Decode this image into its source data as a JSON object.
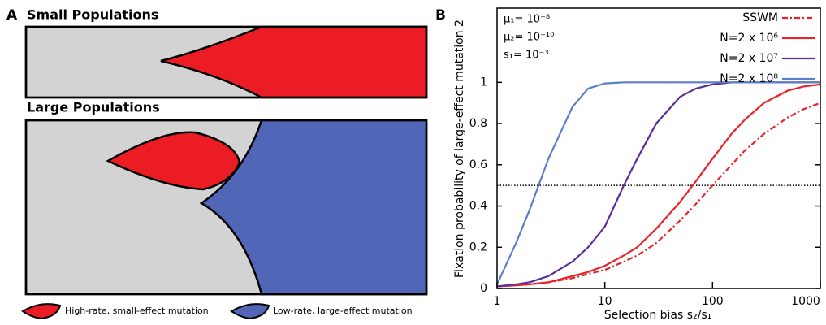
{
  "panel_a": {
    "label": "A",
    "small_title": "Small Populations",
    "large_title": "Large Populations",
    "legend": [
      "High-rate, small-effect mutation",
      "Low-rate, large-effect mutation"
    ]
  },
  "chart_data": {
    "type": "line",
    "panel_label": "B",
    "x_label": "Selection bias s₂/s₁",
    "y_label": "Fixation probability of large-effect mutation 2",
    "annotations": [
      "μ₁= 10⁻⁸",
      "μ₂= 10⁻¹⁰",
      "s₁= 10⁻³"
    ],
    "x": [
      1,
      1.5,
      2,
      3,
      5,
      7,
      10,
      15,
      20,
      30,
      50,
      70,
      100,
      150,
      200,
      300,
      500,
      700,
      1000
    ],
    "series": [
      {
        "name": "SSWM",
        "color": "#e8232a",
        "linestyle": "dashdot",
        "values": [
          0.01,
          0.015,
          0.02,
          0.03,
          0.05,
          0.07,
          0.09,
          0.13,
          0.16,
          0.22,
          0.33,
          0.41,
          0.5,
          0.6,
          0.67,
          0.75,
          0.83,
          0.87,
          0.9
        ]
      },
      {
        "name": "N=2 x 10⁶",
        "color": "#e8232a",
        "linestyle": "solid",
        "values": [
          0.01,
          0.015,
          0.02,
          0.03,
          0.06,
          0.08,
          0.11,
          0.16,
          0.2,
          0.29,
          0.42,
          0.52,
          0.63,
          0.75,
          0.82,
          0.9,
          0.96,
          0.98,
          0.99
        ]
      },
      {
        "name": "N=2 x 10⁷",
        "color": "#5a2d9c",
        "linestyle": "solid",
        "values": [
          0.01,
          0.02,
          0.03,
          0.06,
          0.13,
          0.2,
          0.3,
          0.5,
          0.63,
          0.8,
          0.93,
          0.97,
          0.99,
          1,
          1,
          1,
          1,
          1,
          1
        ]
      },
      {
        "name": "N=2 x 10⁸",
        "color": "#5b7fc7",
        "linestyle": "solid",
        "values": [
          0.02,
          0.22,
          0.38,
          0.63,
          0.88,
          0.97,
          0.995,
          1,
          1,
          1,
          1,
          1,
          1,
          1,
          1,
          1,
          1,
          1,
          1
        ]
      }
    ],
    "reference_line": 0.5,
    "xscale": "log",
    "xlim": [
      1,
      1000
    ],
    "xticks": [
      1,
      10,
      100,
      1000
    ],
    "ylim": [
      0,
      1.36
    ],
    "yticks": [
      0,
      0.2,
      0.4,
      0.6,
      0.8,
      1
    ]
  }
}
